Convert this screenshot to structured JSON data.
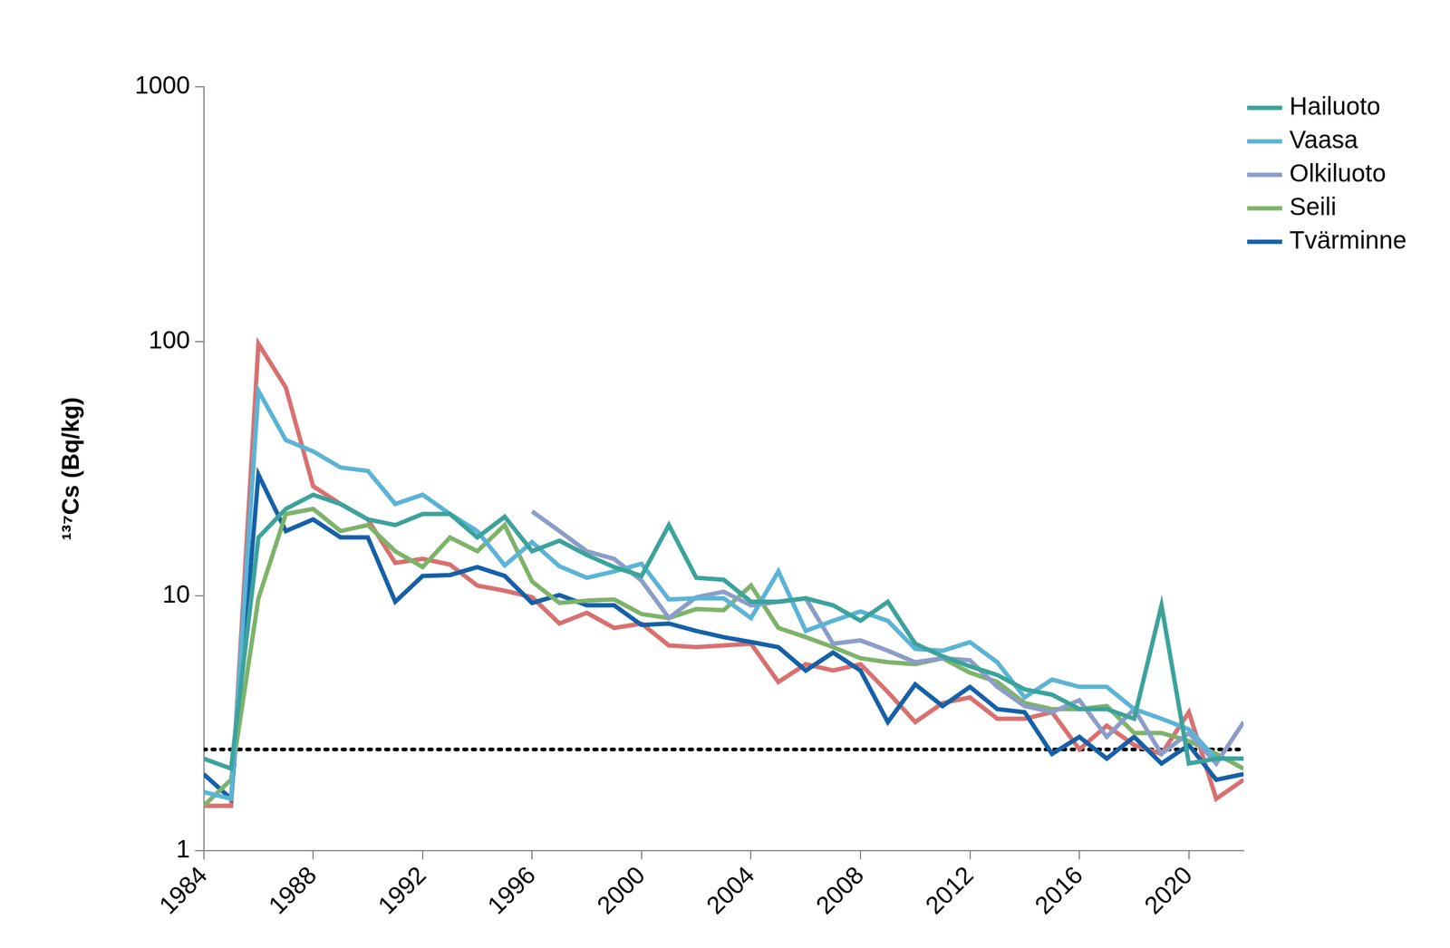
{
  "chart_data": {
    "type": "line",
    "y_label": "¹³⁷Cs (Bq/kg)",
    "x": [
      1984,
      1985,
      1986,
      1987,
      1988,
      1989,
      1990,
      1991,
      1992,
      1993,
      1994,
      1995,
      1996,
      1997,
      1998,
      1999,
      2000,
      2001,
      2002,
      2003,
      2004,
      2005,
      2006,
      2007,
      2008,
      2009,
      2010,
      2011,
      2012,
      2013,
      2014,
      2015,
      2016,
      2017,
      2018,
      2019,
      2020,
      2021,
      2022
    ],
    "xlim": [
      1984,
      2022
    ],
    "xticks": [
      1984,
      1988,
      1992,
      1996,
      2000,
      2004,
      2008,
      2012,
      2016,
      2020
    ],
    "ylim": [
      1,
      1000
    ],
    "yticks": [
      1,
      10,
      100,
      1000
    ],
    "log": "y",
    "grid": false,
    "legend": "upper right",
    "series": [
      {
        "name": "Hailuoto",
        "color": "#3ba39c",
        "line_style": "solid",
        "values": [
          2.3,
          2.1,
          17,
          22,
          25,
          23,
          20,
          19,
          21,
          21,
          17,
          20.5,
          15,
          16.5,
          14.5,
          13,
          12,
          19,
          11.8,
          11.6,
          9.5,
          9.5,
          9.8,
          9.2,
          8,
          9.5,
          6.5,
          5.8,
          5.3,
          4.9,
          4.3,
          4.1,
          3.6,
          3.6,
          3.3,
          9.2,
          2.2,
          2.3,
          2.3
        ]
      },
      {
        "name": "Vaasa",
        "color": "#5ab4d6",
        "line_style": "solid",
        "values": [
          1.7,
          1.6,
          64,
          41,
          37,
          32,
          31,
          23,
          25,
          21,
          18,
          13.2,
          16.3,
          13.1,
          11.8,
          12.5,
          13.4,
          9.7,
          9.8,
          9.8,
          8.2,
          12.5,
          7.3,
          8,
          8.7,
          8,
          6.2,
          6.1,
          6.6,
          5.5,
          4,
          4.7,
          4.4,
          4.4,
          3.6,
          3.3,
          3.0,
          2.3,
          2.3
        ]
      },
      {
        "name": "Olkiluoto",
        "color": "#8b9dc9",
        "line_style": "solid",
        "values": [
          null,
          null,
          null,
          null,
          null,
          null,
          null,
          null,
          null,
          null,
          null,
          null,
          21.5,
          18,
          15,
          14,
          11.5,
          8.2,
          9.9,
          10.4,
          9.2,
          9.5,
          9.8,
          6.5,
          6.7,
          6.1,
          5.5,
          5.7,
          5.6,
          4.4,
          3.7,
          3.5,
          3.9,
          2.8,
          3.6,
          2.4,
          2.9,
          2.2,
          3.2
        ]
      },
      {
        "name": "Seili",
        "color": "#7db36a",
        "line_style": "solid",
        "values": [
          1.5,
          1.9,
          9.8,
          21,
          22,
          18,
          19,
          15,
          13,
          17,
          15,
          19,
          11.4,
          9.4,
          9.6,
          9.7,
          8.5,
          8.2,
          8.9,
          8.8,
          11,
          7.5,
          6.9,
          6.3,
          5.7,
          5.5,
          5.4,
          5.7,
          5.0,
          4.6,
          3.8,
          3.6,
          3.6,
          3.7,
          2.9,
          2.9,
          2.7,
          2.4,
          2.1
        ]
      },
      {
        "name": "Tvärminne",
        "color": "#1560a8",
        "line_style": "solid",
        "values": [
          2.0,
          1.6,
          30,
          18,
          20,
          17,
          17,
          9.5,
          12,
          12.1,
          13,
          12,
          9.4,
          10.1,
          9.2,
          9.2,
          7.7,
          7.8,
          7.3,
          6.9,
          6.6,
          6.3,
          5.1,
          6,
          5.1,
          3.2,
          4.5,
          3.7,
          4.4,
          3.6,
          3.5,
          2.4,
          2.8,
          2.3,
          2.8,
          2.2,
          2.6,
          1.9,
          2.0
        ]
      },
      {
        "name": null,
        "color": "#d9706f",
        "line_style": "solid",
        "values": [
          1.5,
          1.5,
          98,
          66,
          27,
          23,
          20,
          13.5,
          14,
          13.3,
          11,
          10.5,
          9.9,
          7.8,
          8.6,
          7.5,
          7.8,
          6.4,
          6.3,
          6.4,
          6.5,
          4.6,
          5.4,
          5.1,
          5.4,
          4.2,
          3.2,
          3.8,
          4.0,
          3.3,
          3.3,
          3.5,
          2.5,
          3.1,
          2.6,
          2.4,
          3.5,
          1.6,
          1.9
        ]
      },
      {
        "name": null,
        "color": "#000000",
        "line_style": "dotted",
        "values": [
          2.5,
          2.5,
          2.5,
          2.5,
          2.5,
          2.5,
          2.5,
          2.5,
          2.5,
          2.5,
          2.5,
          2.5,
          2.5,
          2.5,
          2.5,
          2.5,
          2.5,
          2.5,
          2.5,
          2.5,
          2.5,
          2.5,
          2.5,
          2.5,
          2.5,
          2.5,
          2.5,
          2.5,
          2.5,
          2.5,
          2.5,
          2.5,
          2.5,
          2.5,
          2.5,
          2.5,
          2.5,
          2.5,
          2.5
        ]
      }
    ]
  }
}
